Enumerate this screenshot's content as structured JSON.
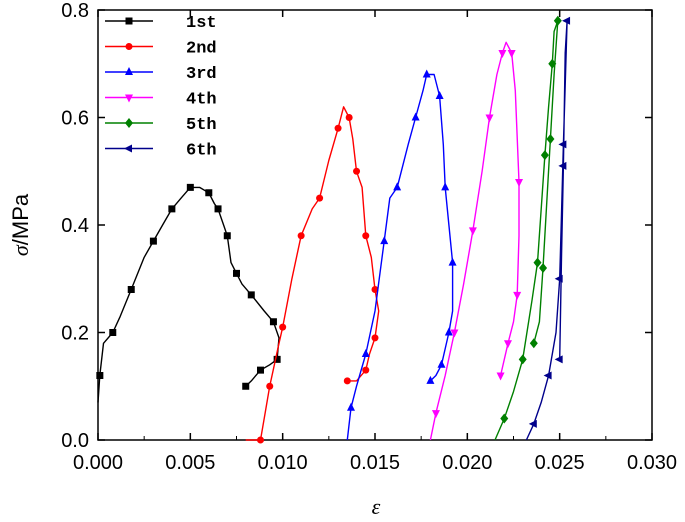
{
  "chart_data": {
    "type": "line",
    "title": "",
    "xlabel": "ε",
    "ylabel_symbol": "σ",
    "ylabel_unit": "/MPa",
    "xlim": [
      0.0,
      0.03
    ],
    "ylim": [
      0.0,
      0.8
    ],
    "xticks": [
      "0.000",
      "0.005",
      "0.010",
      "0.015",
      "0.020",
      "0.025",
      "0.030"
    ],
    "yticks": [
      "0.0",
      "0.2",
      "0.4",
      "0.6",
      "0.8"
    ],
    "grid": false,
    "legend_position": "top-left",
    "series": [
      {
        "name": "1st",
        "color": "#000000",
        "marker": "square",
        "x": [
          0.0,
          0.0001,
          0.0003,
          0.0008,
          0.0012,
          0.0018,
          0.0025,
          0.003,
          0.0035,
          0.004,
          0.0045,
          0.005,
          0.0055,
          0.006,
          0.0063,
          0.0065,
          0.0068,
          0.007,
          0.0072,
          0.0075,
          0.0078,
          0.0083,
          0.009,
          0.0095,
          0.0098,
          0.0097,
          0.0093,
          0.0088,
          0.0083,
          0.008
        ],
        "y": [
          0.07,
          0.12,
          0.18,
          0.2,
          0.23,
          0.28,
          0.34,
          0.37,
          0.4,
          0.43,
          0.45,
          0.47,
          0.47,
          0.46,
          0.44,
          0.43,
          0.4,
          0.38,
          0.33,
          0.31,
          0.29,
          0.27,
          0.24,
          0.22,
          0.19,
          0.15,
          0.14,
          0.13,
          0.11,
          0.1
        ]
      },
      {
        "name": "2nd",
        "color": "#ff0000",
        "marker": "circle",
        "x": [
          0.008,
          0.0088,
          0.009,
          0.0093,
          0.0098,
          0.01,
          0.0105,
          0.011,
          0.0116,
          0.012,
          0.0125,
          0.013,
          0.0133,
          0.0136,
          0.0138,
          0.014,
          0.0143,
          0.0145,
          0.0148,
          0.015,
          0.0152,
          0.015,
          0.0147,
          0.0145,
          0.014,
          0.0135
        ],
        "y": [
          0.0,
          0.0,
          0.04,
          0.1,
          0.18,
          0.21,
          0.3,
          0.38,
          0.43,
          0.45,
          0.52,
          0.58,
          0.62,
          0.6,
          0.56,
          0.5,
          0.47,
          0.38,
          0.34,
          0.28,
          0.24,
          0.19,
          0.16,
          0.13,
          0.11,
          0.11
        ]
      },
      {
        "name": "3rd",
        "color": "#0000ff",
        "marker": "triangle-up",
        "x": [
          0.0135,
          0.0137,
          0.014,
          0.0145,
          0.015,
          0.0155,
          0.0158,
          0.0162,
          0.0168,
          0.0172,
          0.0176,
          0.0178,
          0.0182,
          0.0185,
          0.0187,
          0.0188,
          0.019,
          0.0192,
          0.0192,
          0.019,
          0.0188,
          0.0186,
          0.0183,
          0.018
        ],
        "y": [
          0.0,
          0.06,
          0.1,
          0.16,
          0.24,
          0.37,
          0.45,
          0.47,
          0.55,
          0.6,
          0.65,
          0.68,
          0.68,
          0.64,
          0.55,
          0.47,
          0.4,
          0.33,
          0.24,
          0.2,
          0.17,
          0.14,
          0.12,
          0.11
        ]
      },
      {
        "name": "4th",
        "color": "#ff00ff",
        "marker": "triangle-down",
        "x": [
          0.018,
          0.0183,
          0.0188,
          0.0193,
          0.0198,
          0.0203,
          0.0208,
          0.0212,
          0.0216,
          0.0219,
          0.0221,
          0.0224,
          0.0226,
          0.0228,
          0.0228,
          0.0227,
          0.0225,
          0.0222,
          0.0218
        ],
        "y": [
          0.0,
          0.05,
          0.12,
          0.2,
          0.29,
          0.39,
          0.5,
          0.6,
          0.68,
          0.72,
          0.74,
          0.72,
          0.65,
          0.48,
          0.38,
          0.27,
          0.22,
          0.18,
          0.12
        ]
      },
      {
        "name": "5th",
        "color": "#008000",
        "marker": "diamond",
        "x": [
          0.0215,
          0.022,
          0.0225,
          0.023,
          0.0235,
          0.0238,
          0.024,
          0.0242,
          0.0244,
          0.0246,
          0.0247,
          0.0249,
          0.0247,
          0.0245,
          0.0243,
          0.0241,
          0.0239,
          0.0236
        ],
        "y": [
          0.0,
          0.04,
          0.09,
          0.15,
          0.26,
          0.33,
          0.43,
          0.53,
          0.62,
          0.7,
          0.76,
          0.78,
          0.68,
          0.56,
          0.44,
          0.32,
          0.22,
          0.18
        ]
      },
      {
        "name": "6th",
        "color": "#00008b",
        "marker": "triangle-left",
        "x": [
          0.0232,
          0.0236,
          0.024,
          0.0244,
          0.0248,
          0.025,
          0.0251,
          0.0252,
          0.0253,
          0.0254,
          0.0253,
          0.0252,
          0.0251,
          0.025
        ],
        "y": [
          0.0,
          0.03,
          0.07,
          0.12,
          0.2,
          0.3,
          0.42,
          0.55,
          0.66,
          0.78,
          0.72,
          0.51,
          0.34,
          0.15
        ]
      }
    ]
  }
}
